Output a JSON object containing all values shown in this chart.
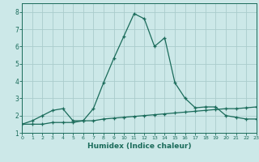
{
  "xlabel": "Humidex (Indice chaleur)",
  "x": [
    0,
    1,
    2,
    3,
    4,
    5,
    6,
    7,
    8,
    9,
    10,
    11,
    12,
    13,
    14,
    15,
    16,
    17,
    18,
    19,
    20,
    21,
    22,
    23
  ],
  "line1_y": [
    1.5,
    1.7,
    2.0,
    2.3,
    2.4,
    1.7,
    1.7,
    2.4,
    3.9,
    5.3,
    6.6,
    7.9,
    7.6,
    6.0,
    6.5,
    3.9,
    3.0,
    2.45,
    2.5,
    2.5,
    2.0,
    1.9,
    1.8,
    1.8
  ],
  "line2_y": [
    1.5,
    1.5,
    1.5,
    1.6,
    1.6,
    1.6,
    1.7,
    1.7,
    1.8,
    1.85,
    1.9,
    1.95,
    2.0,
    2.05,
    2.1,
    2.15,
    2.2,
    2.25,
    2.3,
    2.35,
    2.4,
    2.4,
    2.45,
    2.5
  ],
  "line_color": "#1a6b5a",
  "bg_color": "#cce8e8",
  "grid_color": "#aacccc",
  "ylim": [
    1,
    8.5
  ],
  "xlim": [
    0,
    23
  ],
  "yticks": [
    1,
    2,
    3,
    4,
    5,
    6,
    7,
    8
  ],
  "xticks": [
    0,
    1,
    2,
    3,
    4,
    5,
    6,
    7,
    8,
    9,
    10,
    11,
    12,
    13,
    14,
    15,
    16,
    17,
    18,
    19,
    20,
    21,
    22,
    23
  ]
}
